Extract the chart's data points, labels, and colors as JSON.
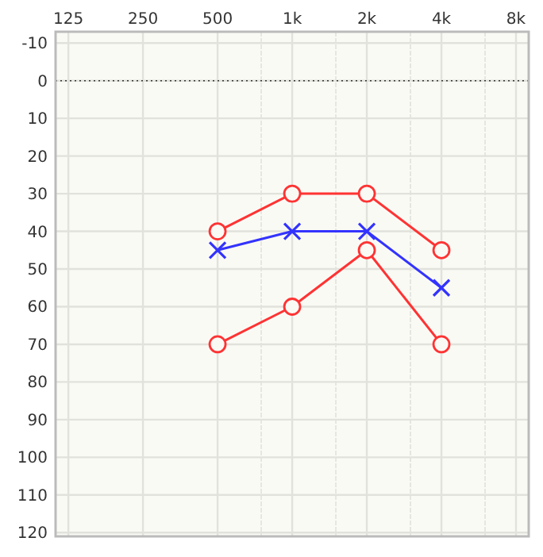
{
  "chart_data": {
    "type": "line",
    "x": [
      500,
      1000,
      2000,
      4000
    ],
    "series": [
      {
        "color": "#ff3333",
        "marker": "circle",
        "values": [
          40,
          30,
          30,
          45
        ]
      },
      {
        "color": "#3333ff",
        "marker": "cross",
        "values": [
          45,
          40,
          40,
          55
        ]
      },
      {
        "color": "#ff3333",
        "marker": "circle",
        "values": [
          70,
          60,
          45,
          70
        ]
      }
    ],
    "log": "x",
    "xlim": [
      111,
      9000
    ],
    "xticks": [
      125,
      250,
      500,
      {
        "value": 750,
        "label": null
      },
      {
        "value": 1000,
        "label": "1k"
      },
      {
        "value": 1500,
        "label": null
      },
      {
        "value": 2000,
        "label": "2k"
      },
      {
        "value": 3000,
        "label": null
      },
      {
        "value": 4000,
        "label": "4k"
      },
      {
        "value": 6000,
        "label": null
      },
      {
        "value": 8000,
        "label": "8k"
      }
    ],
    "ylim": [
      121,
      -13
    ],
    "yticks": [
      -10,
      0,
      10,
      20,
      30,
      40,
      50,
      60,
      70,
      80,
      90,
      100,
      110,
      120
    ],
    "grid": true,
    "line_style": "solid",
    "ref_lines": [
      {
        "axis": "y",
        "value": 0,
        "color": "#333333",
        "line_style": "dotted"
      }
    ]
  }
}
